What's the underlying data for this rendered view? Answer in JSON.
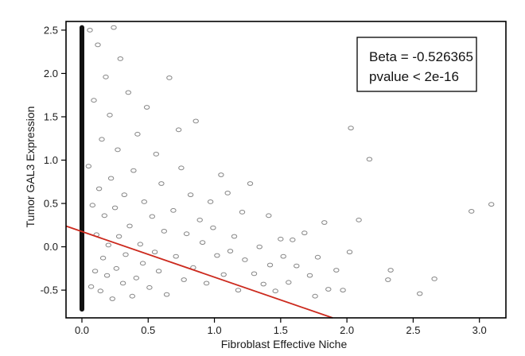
{
  "chart_data": {
    "type": "scatter",
    "title": "",
    "xlabel": "Fibroblast Effective Niche",
    "ylabel": "Tumor GAL3 Expression",
    "xlim": [
      -0.12,
      3.2
    ],
    "ylim": [
      -0.82,
      2.6
    ],
    "x_ticks": [
      {
        "value": 0.0,
        "label": "0.0"
      },
      {
        "value": 0.5,
        "label": "0.5"
      },
      {
        "value": 1.0,
        "label": "1.0"
      },
      {
        "value": 1.5,
        "label": "1.5"
      },
      {
        "value": 2.0,
        "label": "2.0"
      },
      {
        "value": 2.5,
        "label": "2.5"
      },
      {
        "value": 3.0,
        "label": "3.0"
      }
    ],
    "y_ticks": [
      {
        "value": -0.5,
        "label": "-0.5"
      },
      {
        "value": 0.0,
        "label": "0.0"
      },
      {
        "value": 0.5,
        "label": "0.5"
      },
      {
        "value": 1.0,
        "label": "1.0"
      },
      {
        "value": 1.5,
        "label": "1.5"
      },
      {
        "value": 2.0,
        "label": "2.0"
      },
      {
        "value": 2.5,
        "label": "2.5"
      }
    ],
    "grid": false,
    "legend_position": "top-right",
    "annotations": [
      "Beta = -0.526365",
      "pvalue < 2e-16"
    ],
    "fit_line": {
      "intercept": 0.176,
      "slope": -0.526365,
      "color": "#cc2a1e"
    },
    "point_color": "#333333",
    "zero_column": {
      "x": 0.0,
      "y_min": -0.72,
      "y_max": 2.53
    },
    "points": [
      [
        3.09,
        0.49
      ],
      [
        2.94,
        0.41
      ],
      [
        2.66,
        -0.37
      ],
      [
        2.55,
        -0.54
      ],
      [
        2.33,
        -0.27
      ],
      [
        2.31,
        -0.38
      ],
      [
        2.17,
        1.01
      ],
      [
        2.03,
        1.37
      ],
      [
        2.09,
        0.31
      ],
      [
        2.02,
        -0.06
      ],
      [
        1.97,
        -0.5
      ],
      [
        1.92,
        -0.27
      ],
      [
        1.86,
        -0.49
      ],
      [
        1.83,
        0.28
      ],
      [
        1.78,
        -0.12
      ],
      [
        1.76,
        -0.57
      ],
      [
        1.72,
        -0.33
      ],
      [
        1.68,
        0.16
      ],
      [
        1.62,
        -0.22
      ],
      [
        1.59,
        0.08
      ],
      [
        1.56,
        -0.41
      ],
      [
        1.52,
        -0.11
      ],
      [
        1.5,
        0.09
      ],
      [
        1.46,
        -0.51
      ],
      [
        1.42,
        -0.21
      ],
      [
        1.41,
        0.36
      ],
      [
        1.37,
        -0.43
      ],
      [
        1.34,
        0.0
      ],
      [
        1.3,
        -0.31
      ],
      [
        1.27,
        0.73
      ],
      [
        1.23,
        -0.15
      ],
      [
        1.21,
        0.4
      ],
      [
        1.18,
        -0.5
      ],
      [
        1.15,
        0.12
      ],
      [
        1.12,
        -0.05
      ],
      [
        1.1,
        0.62
      ],
      [
        1.07,
        -0.32
      ],
      [
        1.05,
        0.83
      ],
      [
        1.02,
        -0.1
      ],
      [
        0.99,
        0.22
      ],
      [
        0.97,
        0.52
      ],
      [
        0.94,
        -0.42
      ],
      [
        0.91,
        0.05
      ],
      [
        0.89,
        0.31
      ],
      [
        0.86,
        1.45
      ],
      [
        0.84,
        -0.24
      ],
      [
        0.82,
        0.6
      ],
      [
        0.79,
        0.15
      ],
      [
        0.77,
        -0.38
      ],
      [
        0.75,
        0.91
      ],
      [
        0.73,
        1.35
      ],
      [
        0.71,
        -0.11
      ],
      [
        0.69,
        0.42
      ],
      [
        0.66,
        1.95
      ],
      [
        0.64,
        -0.55
      ],
      [
        0.62,
        0.18
      ],
      [
        0.6,
        0.73
      ],
      [
        0.58,
        -0.28
      ],
      [
        0.56,
        1.07
      ],
      [
        0.55,
        -0.06
      ],
      [
        0.53,
        0.35
      ],
      [
        0.51,
        -0.47
      ],
      [
        0.49,
        1.61
      ],
      [
        0.47,
        0.52
      ],
      [
        0.46,
        -0.19
      ],
      [
        0.44,
        0.03
      ],
      [
        0.42,
        1.3
      ],
      [
        0.41,
        -0.36
      ],
      [
        0.39,
        0.88
      ],
      [
        0.38,
        -0.57
      ],
      [
        0.36,
        0.24
      ],
      [
        0.35,
        1.78
      ],
      [
        0.33,
        -0.09
      ],
      [
        0.32,
        0.6
      ],
      [
        0.31,
        -0.42
      ],
      [
        0.29,
        2.17
      ],
      [
        0.28,
        0.12
      ],
      [
        0.27,
        1.12
      ],
      [
        0.26,
        -0.25
      ],
      [
        0.25,
        0.45
      ],
      [
        0.24,
        2.53
      ],
      [
        0.23,
        -0.6
      ],
      [
        0.22,
        0.79
      ],
      [
        0.21,
        1.52
      ],
      [
        0.2,
        0.02
      ],
      [
        0.19,
        -0.33
      ],
      [
        0.18,
        1.96
      ],
      [
        0.17,
        0.36
      ],
      [
        0.16,
        -0.13
      ],
      [
        0.15,
        1.24
      ],
      [
        0.14,
        -0.51
      ],
      [
        0.13,
        0.67
      ],
      [
        0.12,
        2.33
      ],
      [
        0.11,
        0.14
      ],
      [
        0.1,
        -0.28
      ],
      [
        0.09,
        1.69
      ],
      [
        0.08,
        0.48
      ],
      [
        0.07,
        -0.46
      ],
      [
        0.06,
        2.5
      ],
      [
        0.05,
        0.93
      ]
    ]
  }
}
